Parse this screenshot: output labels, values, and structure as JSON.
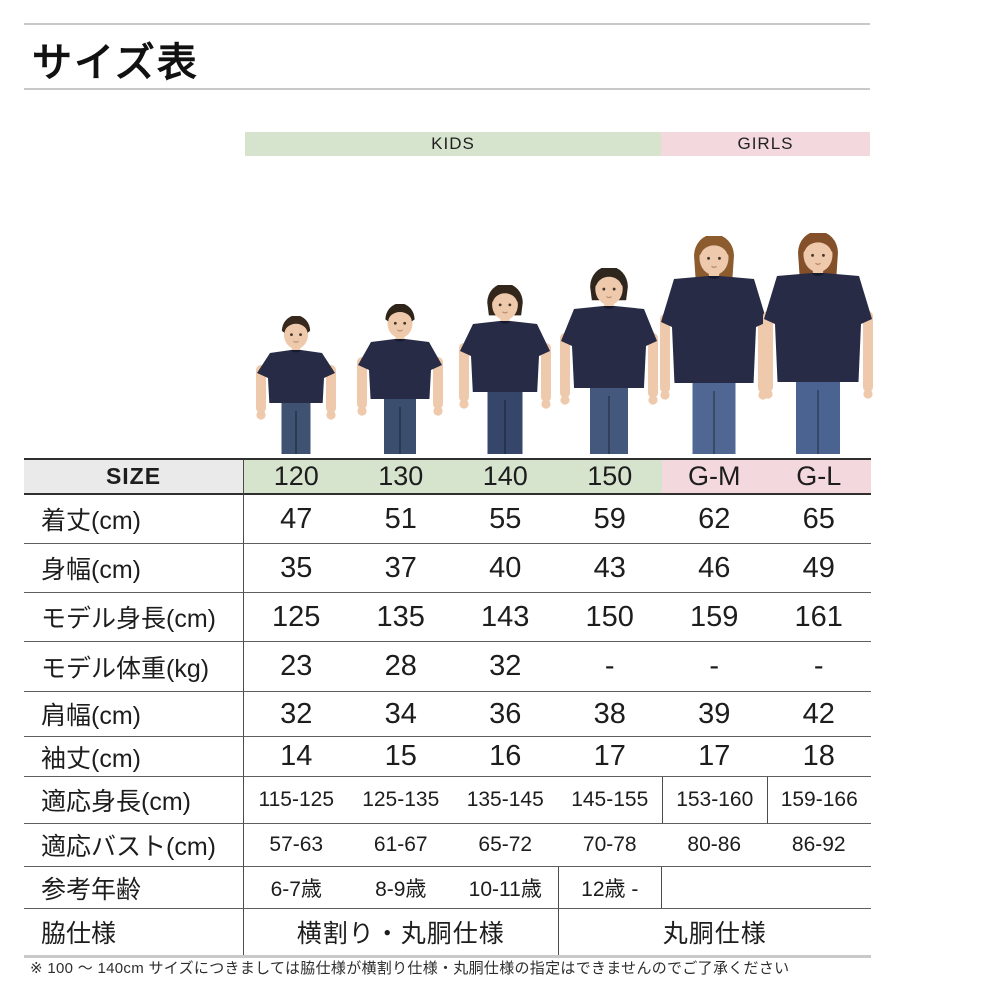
{
  "page": {
    "title": "サイズ表",
    "footnote": "※ 100 〜 140cm サイズにつきましては脇仕様が横割り仕様・丸胴仕様の指定はできませんのでご了承ください"
  },
  "groups": [
    {
      "label": "KIDS",
      "color": "#d6e3cd"
    },
    {
      "label": "GIRLS",
      "color": "#f3d8dd"
    }
  ],
  "colors": {
    "kids_band": "#d6e3cd",
    "girls_band": "#f3d8dd",
    "header_gray": "#eaeaea",
    "tshirt_navy": "#272b45",
    "tshirt_neckline": "#161a2e",
    "skin": "#eec9ab",
    "eye": "#40352b",
    "mouth": "#b98d74"
  },
  "table": {
    "size_header": "SIZE",
    "columns": [
      {
        "label": "120",
        "group": "KIDS"
      },
      {
        "label": "130",
        "group": "KIDS"
      },
      {
        "label": "140",
        "group": "KIDS"
      },
      {
        "label": "150",
        "group": "KIDS"
      },
      {
        "label": "G-M",
        "group": "GIRLS"
      },
      {
        "label": "G-L",
        "group": "GIRLS"
      }
    ],
    "rows": [
      {
        "label": "着丈(cm)",
        "values": [
          "47",
          "51",
          "55",
          "59",
          "62",
          "65"
        ]
      },
      {
        "label": "身幅(cm)",
        "values": [
          "35",
          "37",
          "40",
          "43",
          "46",
          "49"
        ]
      },
      {
        "label": "モデル身長(cm)",
        "values": [
          "125",
          "135",
          "143",
          "150",
          "159",
          "161"
        ]
      },
      {
        "label": "モデル体重(kg)",
        "values": [
          "23",
          "28",
          "32",
          "-",
          "-",
          "-"
        ]
      },
      {
        "label": "肩幅(cm)",
        "values": [
          "32",
          "34",
          "36",
          "38",
          "39",
          "42"
        ]
      },
      {
        "label": "袖丈(cm)",
        "values": [
          "14",
          "15",
          "16",
          "17",
          "17",
          "18"
        ]
      },
      {
        "label": "適応身長(cm)",
        "small": true,
        "values": [
          "115-125",
          "125-135",
          "135-145",
          "145-155",
          "153-160",
          "159-166"
        ]
      },
      {
        "label": "適応バスト(cm)",
        "small": true,
        "values": [
          "57-63",
          "61-67",
          "65-72",
          "70-78",
          "80-86",
          "86-92"
        ]
      },
      {
        "label": "参考年齢",
        "small": true,
        "values": [
          "6-7歳",
          "8-9歳",
          "10-11歳",
          "12歳 -",
          "",
          ""
        ]
      },
      {
        "label": "脇仕様",
        "merged": [
          {
            "text": "横割り・丸胴仕様",
            "cols": 3
          },
          {
            "text": "丸胴仕様",
            "cols": 3
          }
        ]
      }
    ]
  },
  "models": [
    {
      "size": "120",
      "figure": "boy",
      "hair_color": "#37291d",
      "jeans_color": "#3f5272"
    },
    {
      "size": "130",
      "figure": "boy",
      "hair_color": "#2e2418",
      "jeans_color": "#3c4e6e"
    },
    {
      "size": "140",
      "figure": "girl",
      "hair_color": "#33271c",
      "jeans_color": "#36466a"
    },
    {
      "size": "150",
      "figure": "girl",
      "hair_color": "#2f261d",
      "jeans_color": "#44587e"
    },
    {
      "size": "G-M",
      "figure": "woman",
      "hair_color": "#8d5c2e",
      "jeans_color": "#4f6792"
    },
    {
      "size": "G-L",
      "figure": "woman",
      "hair_color": "#83502a",
      "jeans_color": "#4b6390"
    }
  ]
}
